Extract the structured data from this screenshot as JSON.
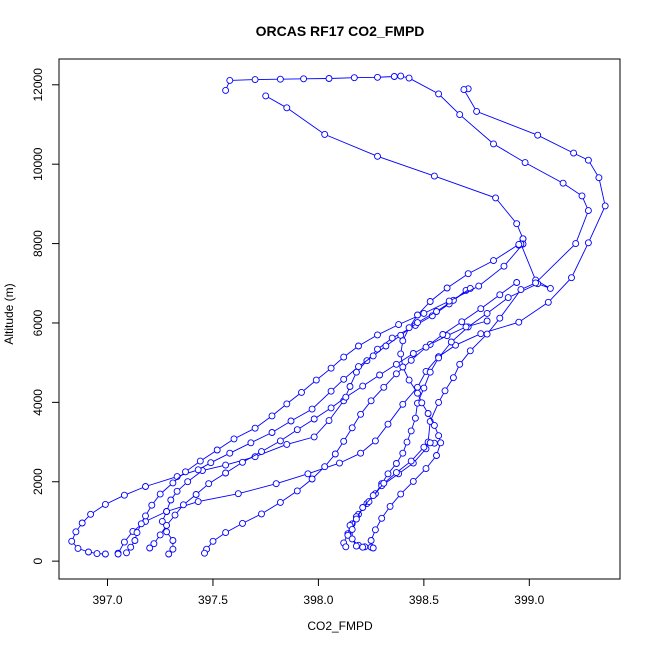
{
  "chart_data": {
    "type": "line",
    "title": "ORCAS RF17 CO2_FMPD",
    "xlabel": "CO2_FMPD",
    "ylabel": "Altitude (m)",
    "xlim": [
      396.77,
      399.43
    ],
    "ylim": [
      -450,
      12650
    ],
    "xticks": [
      397.0,
      397.5,
      398.0,
      398.5,
      399.0
    ],
    "xtick_labels": [
      "397.0",
      "397.5",
      "398.0",
      "398.5",
      "399.0"
    ],
    "yticks": [
      0,
      2000,
      4000,
      6000,
      8000,
      10000,
      12000
    ],
    "ytick_labels": [
      "0",
      "2000",
      "4000",
      "6000",
      "8000",
      "10000",
      "12000"
    ],
    "grid": false,
    "marker": "open-circle",
    "series": [
      {
        "color": "#0000ff",
        "points": [
          [
            398.71,
            11900
          ],
          [
            398.69,
            11880
          ],
          [
            398.75,
            11330
          ],
          [
            399.04,
            10730
          ],
          [
            399.21,
            10280
          ],
          [
            399.28,
            10100
          ],
          [
            399.33,
            9660
          ],
          [
            399.36,
            8950
          ],
          [
            399.28,
            8020
          ],
          [
            399.2,
            7140
          ],
          [
            399.09,
            6520
          ],
          [
            398.95,
            6020
          ],
          [
            398.77,
            5730
          ],
          [
            398.65,
            5440
          ],
          [
            398.57,
            5150
          ],
          [
            398.51,
            4780
          ],
          [
            398.47,
            4380
          ],
          [
            398.4,
            3950
          ],
          [
            398.33,
            3450
          ],
          [
            398.27,
            3030
          ],
          [
            398.2,
            2720
          ],
          [
            398.1,
            2470
          ],
          [
            397.95,
            2200
          ],
          [
            397.8,
            1950
          ],
          [
            397.62,
            1700
          ],
          [
            397.43,
            1500
          ],
          [
            397.28,
            1250
          ],
          [
            397.18,
            1000
          ],
          [
            397.12,
            750
          ],
          [
            397.08,
            480
          ],
          [
            397.05,
            200
          ],
          [
            397.05,
            180
          ]
        ]
      },
      {
        "color": "#0000ff",
        "points": [
          [
            398.97,
            8120
          ],
          [
            398.96,
            7990
          ],
          [
            398.95,
            7960
          ],
          [
            398.96,
            7990
          ],
          [
            399.03,
            7080
          ],
          [
            399.1,
            6870
          ],
          [
            399.04,
            6990
          ],
          [
            398.9,
            6640
          ],
          [
            398.8,
            6240
          ],
          [
            398.71,
            5900
          ],
          [
            398.63,
            5520
          ],
          [
            398.57,
            5120
          ],
          [
            398.53,
            4760
          ],
          [
            398.5,
            4360
          ],
          [
            398.47,
            3980
          ],
          [
            398.46,
            3600
          ],
          [
            398.44,
            3280
          ],
          [
            398.42,
            3000
          ],
          [
            398.4,
            2720
          ],
          [
            398.37,
            2460
          ],
          [
            398.33,
            2200
          ],
          [
            398.3,
            1950
          ],
          [
            398.27,
            1700
          ],
          [
            398.23,
            1450
          ],
          [
            398.19,
            1180
          ],
          [
            398.16,
            940
          ],
          [
            398.14,
            690
          ],
          [
            398.12,
            460
          ],
          [
            398.13,
            360
          ]
        ]
      },
      {
        "color": "#0000ff",
        "points": [
          [
            397.56,
            11860
          ],
          [
            397.58,
            12110
          ],
          [
            397.7,
            12130
          ],
          [
            397.82,
            12140
          ],
          [
            397.93,
            12150
          ],
          [
            398.05,
            12160
          ],
          [
            398.17,
            12180
          ],
          [
            398.28,
            12190
          ],
          [
            398.36,
            12210
          ],
          [
            398.39,
            12220
          ],
          [
            398.43,
            12170
          ],
          [
            398.57,
            11770
          ],
          [
            398.67,
            11250
          ],
          [
            398.83,
            10510
          ],
          [
            398.98,
            10040
          ],
          [
            399.16,
            9520
          ],
          [
            399.25,
            9200
          ],
          [
            399.28,
            8830
          ],
          [
            399.22,
            8000
          ],
          [
            399.03,
            7010
          ],
          [
            398.96,
            6840
          ],
          [
            398.86,
            6120
          ],
          [
            398.8,
            5720
          ],
          [
            398.72,
            5300
          ],
          [
            398.67,
            4960
          ],
          [
            398.64,
            4620
          ],
          [
            398.6,
            4290
          ],
          [
            398.57,
            4000
          ],
          [
            398.53,
            3520
          ],
          [
            398.52,
            3000
          ],
          [
            398.51,
            2830
          ],
          [
            398.45,
            2470
          ],
          [
            398.38,
            2200
          ],
          [
            398.3,
            1900
          ],
          [
            398.24,
            1500
          ],
          [
            398.18,
            1120
          ],
          [
            398.15,
            900
          ],
          [
            398.14,
            650
          ],
          [
            398.19,
            400
          ],
          [
            398.22,
            360
          ]
        ]
      },
      {
        "color": "#0000ff",
        "points": [
          [
            397.75,
            11720
          ],
          [
            397.85,
            11420
          ],
          [
            398.03,
            10750
          ],
          [
            398.28,
            10200
          ],
          [
            398.55,
            9700
          ],
          [
            398.84,
            9150
          ],
          [
            398.94,
            8500
          ],
          [
            398.97,
            8120
          ]
        ]
      },
      {
        "color": "#0000ff",
        "points": [
          [
            398.7,
            6820
          ],
          [
            398.62,
            6480
          ],
          [
            398.54,
            6180
          ],
          [
            398.46,
            5940
          ],
          [
            398.35,
            5620
          ],
          [
            398.28,
            5340
          ],
          [
            398.23,
            5050
          ],
          [
            398.18,
            4760
          ],
          [
            398.15,
            4400
          ],
          [
            398.12,
            4040
          ],
          [
            398.05,
            3540
          ],
          [
            397.98,
            3130
          ],
          [
            397.85,
            2940
          ],
          [
            397.7,
            2630
          ],
          [
            397.56,
            2420
          ],
          [
            397.45,
            2280
          ],
          [
            397.38,
            2000
          ],
          [
            397.33,
            1760
          ],
          [
            397.3,
            1540
          ],
          [
            397.28,
            1250
          ],
          [
            397.26,
            1000
          ],
          [
            397.28,
            740
          ],
          [
            397.31,
            520
          ],
          [
            397.31,
            300
          ],
          [
            397.29,
            180
          ]
        ]
      },
      {
        "color": "#0000ff",
        "points": [
          [
            398.72,
            6870
          ],
          [
            398.64,
            6570
          ],
          [
            398.56,
            6290
          ],
          [
            398.47,
            6010
          ],
          [
            398.39,
            5690
          ],
          [
            398.32,
            5420
          ],
          [
            398.26,
            5170
          ],
          [
            398.19,
            4900
          ],
          [
            398.12,
            4580
          ],
          [
            398.06,
            4280
          ],
          [
            397.97,
            3830
          ],
          [
            397.87,
            3530
          ],
          [
            397.78,
            3240
          ],
          [
            397.68,
            2980
          ],
          [
            397.58,
            2720
          ],
          [
            397.49,
            2480
          ],
          [
            397.43,
            2300
          ],
          [
            397.33,
            2130
          ],
          [
            397.18,
            1880
          ],
          [
            397.08,
            1660
          ],
          [
            396.99,
            1430
          ],
          [
            396.92,
            1180
          ],
          [
            396.88,
            960
          ],
          [
            396.85,
            740
          ],
          [
            396.83,
            500
          ],
          [
            396.86,
            320
          ],
          [
            396.91,
            230
          ],
          [
            396.95,
            190
          ],
          [
            396.99,
            180
          ]
        ]
      },
      {
        "color": "#0000ff",
        "points": [
          [
            398.97,
            7990
          ],
          [
            398.88,
            7430
          ],
          [
            398.76,
            6930
          ],
          [
            398.62,
            6550
          ],
          [
            398.5,
            6240
          ],
          [
            398.38,
            5960
          ],
          [
            398.28,
            5700
          ],
          [
            398.19,
            5420
          ],
          [
            398.12,
            5140
          ],
          [
            398.06,
            4860
          ],
          [
            397.99,
            4560
          ],
          [
            397.92,
            4250
          ],
          [
            397.85,
            3960
          ],
          [
            397.78,
            3660
          ],
          [
            397.7,
            3350
          ],
          [
            397.6,
            3080
          ],
          [
            397.52,
            2800
          ],
          [
            397.44,
            2520
          ],
          [
            397.37,
            2250
          ],
          [
            397.31,
            1970
          ],
          [
            397.25,
            1690
          ],
          [
            397.21,
            1410
          ],
          [
            397.18,
            1140
          ],
          [
            397.16,
            940
          ],
          [
            397.14,
            720
          ],
          [
            397.13,
            520
          ],
          [
            397.11,
            350
          ],
          [
            397.09,
            210
          ]
        ]
      },
      {
        "color": "#0000ff",
        "points": [
          [
            398.8,
            6050
          ],
          [
            398.7,
            5900
          ],
          [
            398.61,
            5680
          ],
          [
            398.53,
            5460
          ],
          [
            398.45,
            5230
          ],
          [
            398.37,
            4960
          ],
          [
            398.29,
            4690
          ],
          [
            398.21,
            4410
          ],
          [
            398.13,
            4130
          ],
          [
            398.06,
            3860
          ],
          [
            397.98,
            3580
          ],
          [
            397.9,
            3310
          ],
          [
            397.82,
            3030
          ],
          [
            397.73,
            2760
          ],
          [
            397.64,
            2490
          ],
          [
            397.56,
            2220
          ],
          [
            397.48,
            1950
          ],
          [
            397.42,
            1680
          ],
          [
            397.36,
            1420
          ],
          [
            397.32,
            1160
          ],
          [
            397.28,
            900
          ],
          [
            397.25,
            660
          ],
          [
            397.22,
            440
          ],
          [
            397.2,
            330
          ]
        ]
      },
      {
        "color": "#0000ff",
        "points": [
          [
            398.55,
            2970
          ],
          [
            398.53,
            2980
          ],
          [
            398.5,
            2870
          ],
          [
            398.44,
            2520
          ],
          [
            398.37,
            2230
          ],
          [
            398.31,
            1960
          ],
          [
            398.26,
            1650
          ],
          [
            398.21,
            1350
          ],
          [
            398.18,
            1060
          ],
          [
            398.16,
            800
          ],
          [
            398.16,
            560
          ],
          [
            398.18,
            380
          ],
          [
            398.21,
            350
          ]
        ]
      },
      {
        "color": "#0000ff",
        "points": [
          [
            398.94,
            7020
          ],
          [
            398.86,
            6710
          ],
          [
            398.77,
            6360
          ],
          [
            398.68,
            6030
          ],
          [
            398.59,
            5710
          ],
          [
            398.51,
            5390
          ],
          [
            398.44,
            5060
          ],
          [
            398.37,
            4720
          ],
          [
            398.31,
            4380
          ],
          [
            398.25,
            4040
          ],
          [
            398.2,
            3700
          ],
          [
            398.16,
            3360
          ],
          [
            398.12,
            3020
          ],
          [
            398.08,
            2700
          ],
          [
            398.03,
            2380
          ],
          [
            397.97,
            2070
          ],
          [
            397.9,
            1770
          ],
          [
            397.82,
            1480
          ],
          [
            397.73,
            1190
          ],
          [
            397.64,
            950
          ],
          [
            397.56,
            720
          ],
          [
            397.5,
            500
          ],
          [
            397.47,
            300
          ],
          [
            397.46,
            200
          ]
        ]
      },
      {
        "color": "#0000ff",
        "points": [
          [
            398.96,
            7990
          ],
          [
            398.95,
            7980
          ],
          [
            398.83,
            7570
          ],
          [
            398.71,
            7240
          ],
          [
            398.61,
            6880
          ],
          [
            398.53,
            6540
          ],
          [
            398.47,
            6200
          ],
          [
            398.43,
            5880
          ],
          [
            398.4,
            5550
          ],
          [
            398.39,
            5220
          ],
          [
            398.4,
            4890
          ],
          [
            398.43,
            4560
          ],
          [
            398.47,
            4230
          ],
          [
            398.49,
            3990
          ],
          [
            398.52,
            3720
          ],
          [
            398.55,
            3420
          ],
          [
            398.57,
            3160
          ],
          [
            398.58,
            2980
          ],
          [
            398.56,
            2660
          ],
          [
            398.51,
            2330
          ],
          [
            398.45,
            2010
          ],
          [
            398.39,
            1690
          ],
          [
            398.34,
            1380
          ],
          [
            398.3,
            1080
          ],
          [
            398.27,
            790
          ],
          [
            398.25,
            520
          ],
          [
            398.25,
            350
          ],
          [
            398.26,
            330
          ]
        ]
      }
    ]
  }
}
